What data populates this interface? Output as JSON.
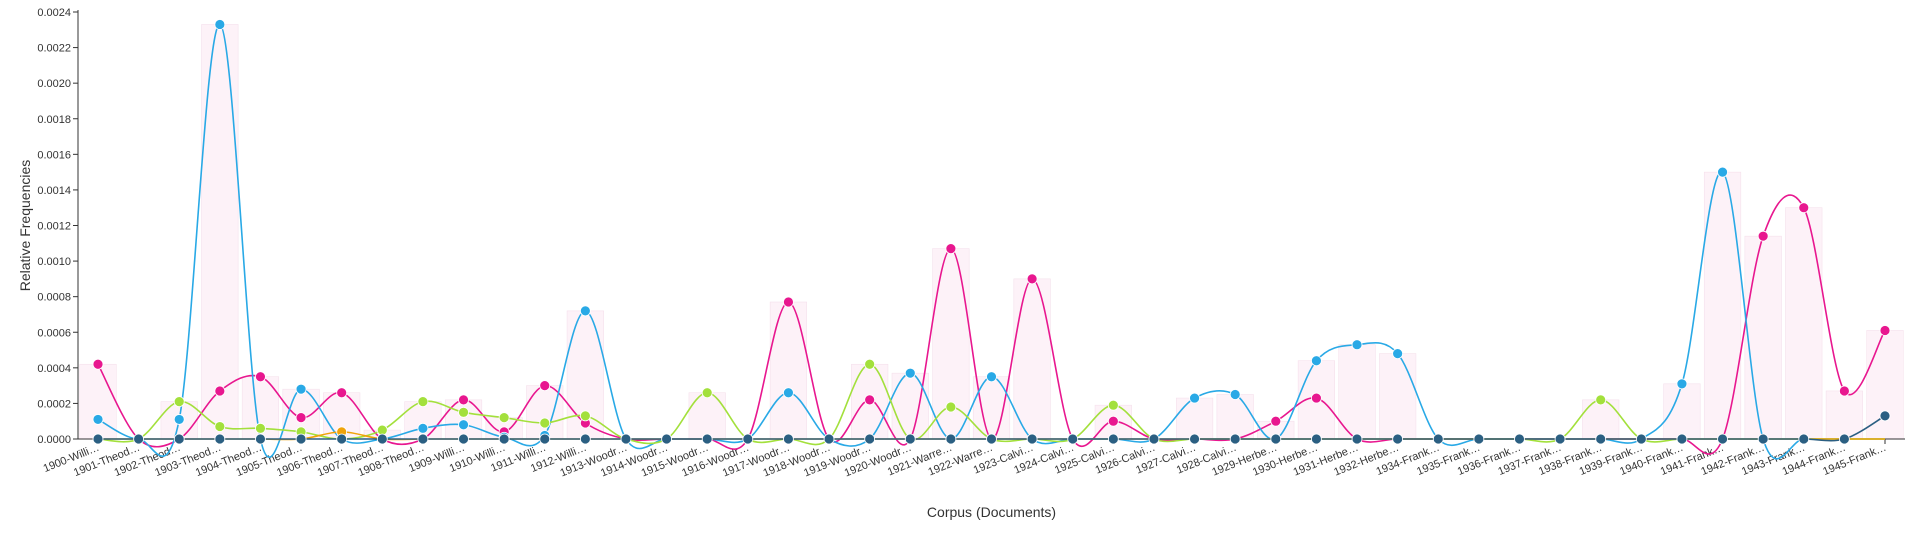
{
  "chart_data": {
    "type": "line",
    "xlabel": "Corpus (Documents)",
    "ylabel": "Relative Frequencies",
    "ylim": [
      0,
      0.0024
    ],
    "y_ticks": [
      "0.0000",
      "0.0002",
      "0.0004",
      "0.0006",
      "0.0008",
      "0.0010",
      "0.0012",
      "0.0014",
      "0.0016",
      "0.0018",
      "0.0020",
      "0.0022",
      "0.0024"
    ],
    "y_tick_values": [
      0,
      0.0002,
      0.0004,
      0.0006,
      0.0008,
      0.001,
      0.0012,
      0.0014,
      0.0016,
      0.0018,
      0.002,
      0.0022,
      0.0024
    ],
    "categories": [
      "1900-Willi…",
      "1901-Theod…",
      "1902-Theod…",
      "1903-Theod…",
      "1904-Theod…",
      "1905-Theod…",
      "1906-Theod…",
      "1907-Theod…",
      "1908-Theod…",
      "1909-Willi…",
      "1910-Willi…",
      "1911-Willi…",
      "1912-Willi…",
      "1913-Woodr…",
      "1914-Woodr…",
      "1915-Woodr…",
      "1916-Woodr…",
      "1917-Woodr…",
      "1918-Woodr…",
      "1919-Woodr…",
      "1920-Woodr…",
      "1921-Warre…",
      "1922-Warre…",
      "1923-Calvi…",
      "1924-Calvi…",
      "1925-Calvi…",
      "1926-Calvi…",
      "1927-Calvi…",
      "1928-Calvi…",
      "1929-Herbe…",
      "1930-Herbe…",
      "1931-Herbe…",
      "1932-Herbe…",
      "1934-Frank…",
      "1935-Frank…",
      "1936-Frank…",
      "1937-Frank…",
      "1938-Frank…",
      "1939-Frank…",
      "1940-Frank…",
      "1941-Frank…",
      "1942-Frank…",
      "1943-Frank…",
      "1944-Frank…",
      "1945-Frank…"
    ],
    "grid": false,
    "series": [
      {
        "color": "#e8178f",
        "values": [
          0.00042,
          0,
          0,
          0.00027,
          0.00035,
          0.00012,
          0.00026,
          0,
          0,
          0.00022,
          4e-05,
          0.0003,
          9e-05,
          0,
          0,
          0,
          0,
          0.00077,
          0,
          0.00022,
          0,
          0.00107,
          0,
          0.0009,
          0,
          0.0001,
          0,
          0,
          0,
          0.0001,
          0.00023,
          0,
          0,
          0,
          0,
          0,
          0,
          0,
          0,
          0,
          0,
          0.00114,
          0.0013,
          0.00027,
          0.00061
        ]
      },
      {
        "color": "#29a9e6",
        "values": [
          0.00011,
          0,
          0.00011,
          0.00233,
          0,
          0.00028,
          0,
          0,
          6e-05,
          8e-05,
          1e-05,
          2e-05,
          0.00072,
          0,
          0,
          0,
          0,
          0.00026,
          0,
          0,
          0.00037,
          0,
          0.00035,
          0,
          0,
          0,
          0,
          0.00023,
          0.00025,
          0,
          0.00044,
          0.00053,
          0.00048,
          0,
          0,
          0,
          0,
          0,
          0,
          0.00031,
          0.0015,
          0,
          0,
          0,
          0
        ]
      },
      {
        "color": "#a3e03c",
        "values": [
          0,
          0,
          0.00021,
          7e-05,
          6e-05,
          4e-05,
          0,
          5e-05,
          0.00021,
          0.00015,
          0.00012,
          9e-05,
          0.00013,
          0,
          0,
          0.00026,
          0,
          0,
          0,
          0.00042,
          0,
          0.00018,
          0,
          0,
          0,
          0.00019,
          0,
          0,
          0,
          0,
          0,
          0,
          0,
          0,
          0,
          0,
          0,
          0.00022,
          0,
          0,
          0,
          0,
          0,
          0,
          0
        ]
      },
      {
        "color": "#f0a30a",
        "values": [
          0,
          0,
          0,
          0,
          0,
          0,
          4e-05,
          0,
          0,
          0,
          0,
          0,
          0,
          0,
          0,
          0,
          0,
          0,
          0,
          0,
          0,
          0,
          0,
          0,
          0,
          0,
          0,
          0,
          0,
          0,
          0,
          0,
          0,
          0,
          0,
          0,
          0,
          0,
          0,
          0,
          0,
          0,
          0,
          0,
          0
        ]
      },
      {
        "color": "#2b5f82",
        "values": [
          0,
          0,
          0,
          0,
          0,
          0,
          0,
          0,
          0,
          0,
          0,
          0,
          0,
          0,
          0,
          0,
          0,
          0,
          0,
          0,
          0,
          0,
          0,
          0,
          0,
          0,
          0,
          0,
          0,
          0,
          0,
          0,
          0,
          0,
          0,
          0,
          0,
          0,
          0,
          0,
          0,
          0,
          0,
          0,
          0.00013
        ]
      }
    ]
  }
}
